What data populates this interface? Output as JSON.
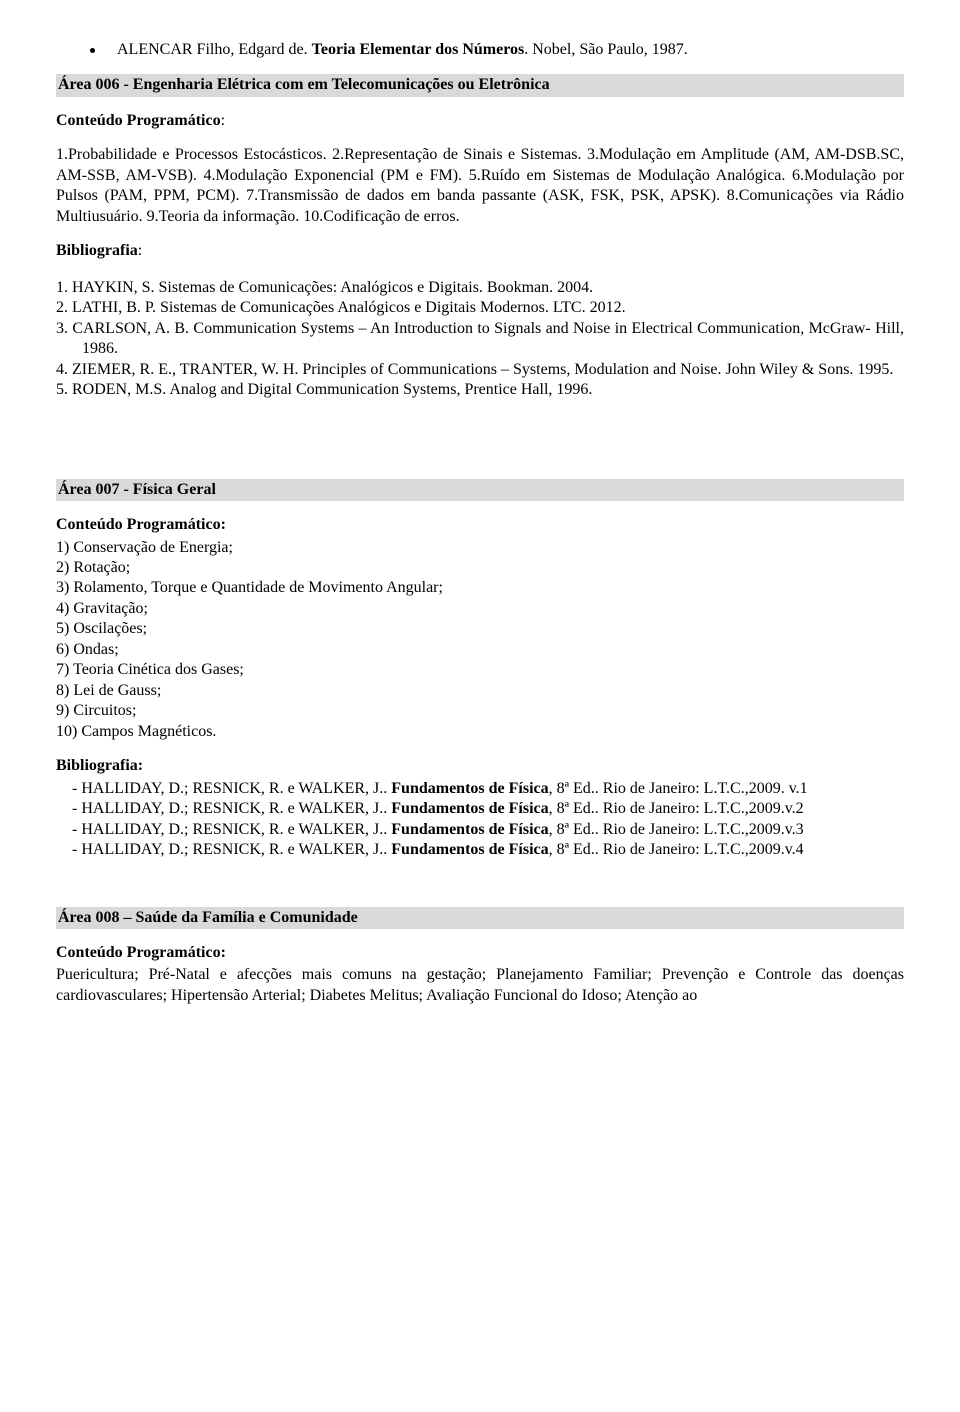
{
  "topRef": {
    "prefix": "ALENCAR Filho, Edgard de. ",
    "boldTitle": "Teoria Elementar dos Números",
    "suffix": ". Nobel, São Paulo, 1987."
  },
  "area006": {
    "header": "Área 006 - Engenharia Elétrica com em Telecomunicações ou Eletrônica",
    "conteudoLabel": "Conteúdo Programático",
    "conteudoBody": "1.Probabilidade e Processos Estocásticos. 2.Representação de Sinais e Sistemas. 3.Modulação em Amplitude (AM, AM-DSB.SC, AM-SSB, AM-VSB). 4.Modulação Exponencial (PM e FM). 5.Ruído em Sistemas de Modulação Analógica. 6.Modulação por Pulsos (PAM, PPM, PCM). 7.Transmissão de dados em banda passante (ASK, FSK, PSK, APSK). 8.Comunicações via Rádio Multiusuário. 9.Teoria da informação. 10.Codificação de erros.",
    "biblioLabel": "Bibliografia",
    "biblio": {
      "i1": "1.   HAYKIN, S. Sistemas de Comunicações: Analógicos e Digitais. Bookman. 2004.",
      "i2": "2.   LATHI, B. P. Sistemas de Comunicações Analógicos e Digitais Modernos. LTC. 2012.",
      "i3": "3.   CARLSON, A. B. Communication Systems – An Introduction to Signals and Noise in Electrical Communication, McGraw- Hill, 1986.",
      "i4": "4.   ZIEMER, R. E., TRANTER, W. H. Principles of Communications – Systems, Modulation and Noise. John Wiley & Sons. 1995.",
      "i5": "5.   RODEN, M.S.  Analog and Digital Communication Systems, Prentice Hall, 1996."
    }
  },
  "area007": {
    "header": "Área 007 -  Física Geral",
    "conteudoLabel": "Conteúdo Programático:",
    "items": {
      "l1": "1) Conservação de Energia;",
      "l2": "2) Rotação;",
      "l3": "3) Rolamento, Torque e Quantidade de Movimento Angular;",
      "l4": "4) Gravitação;",
      "l5": "5) Oscilações;",
      "l6": "6) Ondas;",
      "l7": "7) Teoria Cinética dos Gases;",
      "l8": "8) Lei de Gauss;",
      "l9": "9) Circuitos;",
      "l10": "10) Campos Magnéticos."
    },
    "biblioLabel": "Bibliografia:",
    "biblio": {
      "b1": {
        "dash": "- ",
        "pre": "HALLIDAY, D.; RESNICK, R. e WALKER, J.. ",
        "bold": "Fundamentos de Física",
        "post": ", 8ª Ed.. Rio de Janeiro: L.T.C.,2009. v.1"
      },
      "b2": {
        "dash": "- ",
        "pre": "HALLIDAY, D.; RESNICK, R. e WALKER, J.. ",
        "bold": "Fundamentos de Física",
        "post": ", 8ª Ed.. Rio de Janeiro: L.T.C.,2009.v.2"
      },
      "b3": {
        "dash": "- ",
        "pre": "HALLIDAY, D.; RESNICK, R. e WALKER, J.. ",
        "bold": "Fundamentos de Física",
        "post": ", 8ª Ed.. Rio de Janeiro: L.T.C.,2009.v.3"
      },
      "b4": {
        "dash": "- ",
        "pre": "HALLIDAY, D.; RESNICK, R. e WALKER, J.. ",
        "bold": "Fundamentos de Física",
        "post": ", 8ª Ed.. Rio de Janeiro: L.T.C.,2009.v.4"
      }
    }
  },
  "area008": {
    "header": "Área 008 – Saúde da Família e Comunidade",
    "conteudoLabel": "Conteúdo Programático:",
    "conteudoBody": "Puericultura; Pré-Natal e afecções mais comuns na gestação; Planejamento Familiar; Prevenção e Controle das doenças cardiovasculares; Hipertensão Arterial; Diabetes Melitus; Avaliação Funcional do Idoso; Atenção ao"
  }
}
